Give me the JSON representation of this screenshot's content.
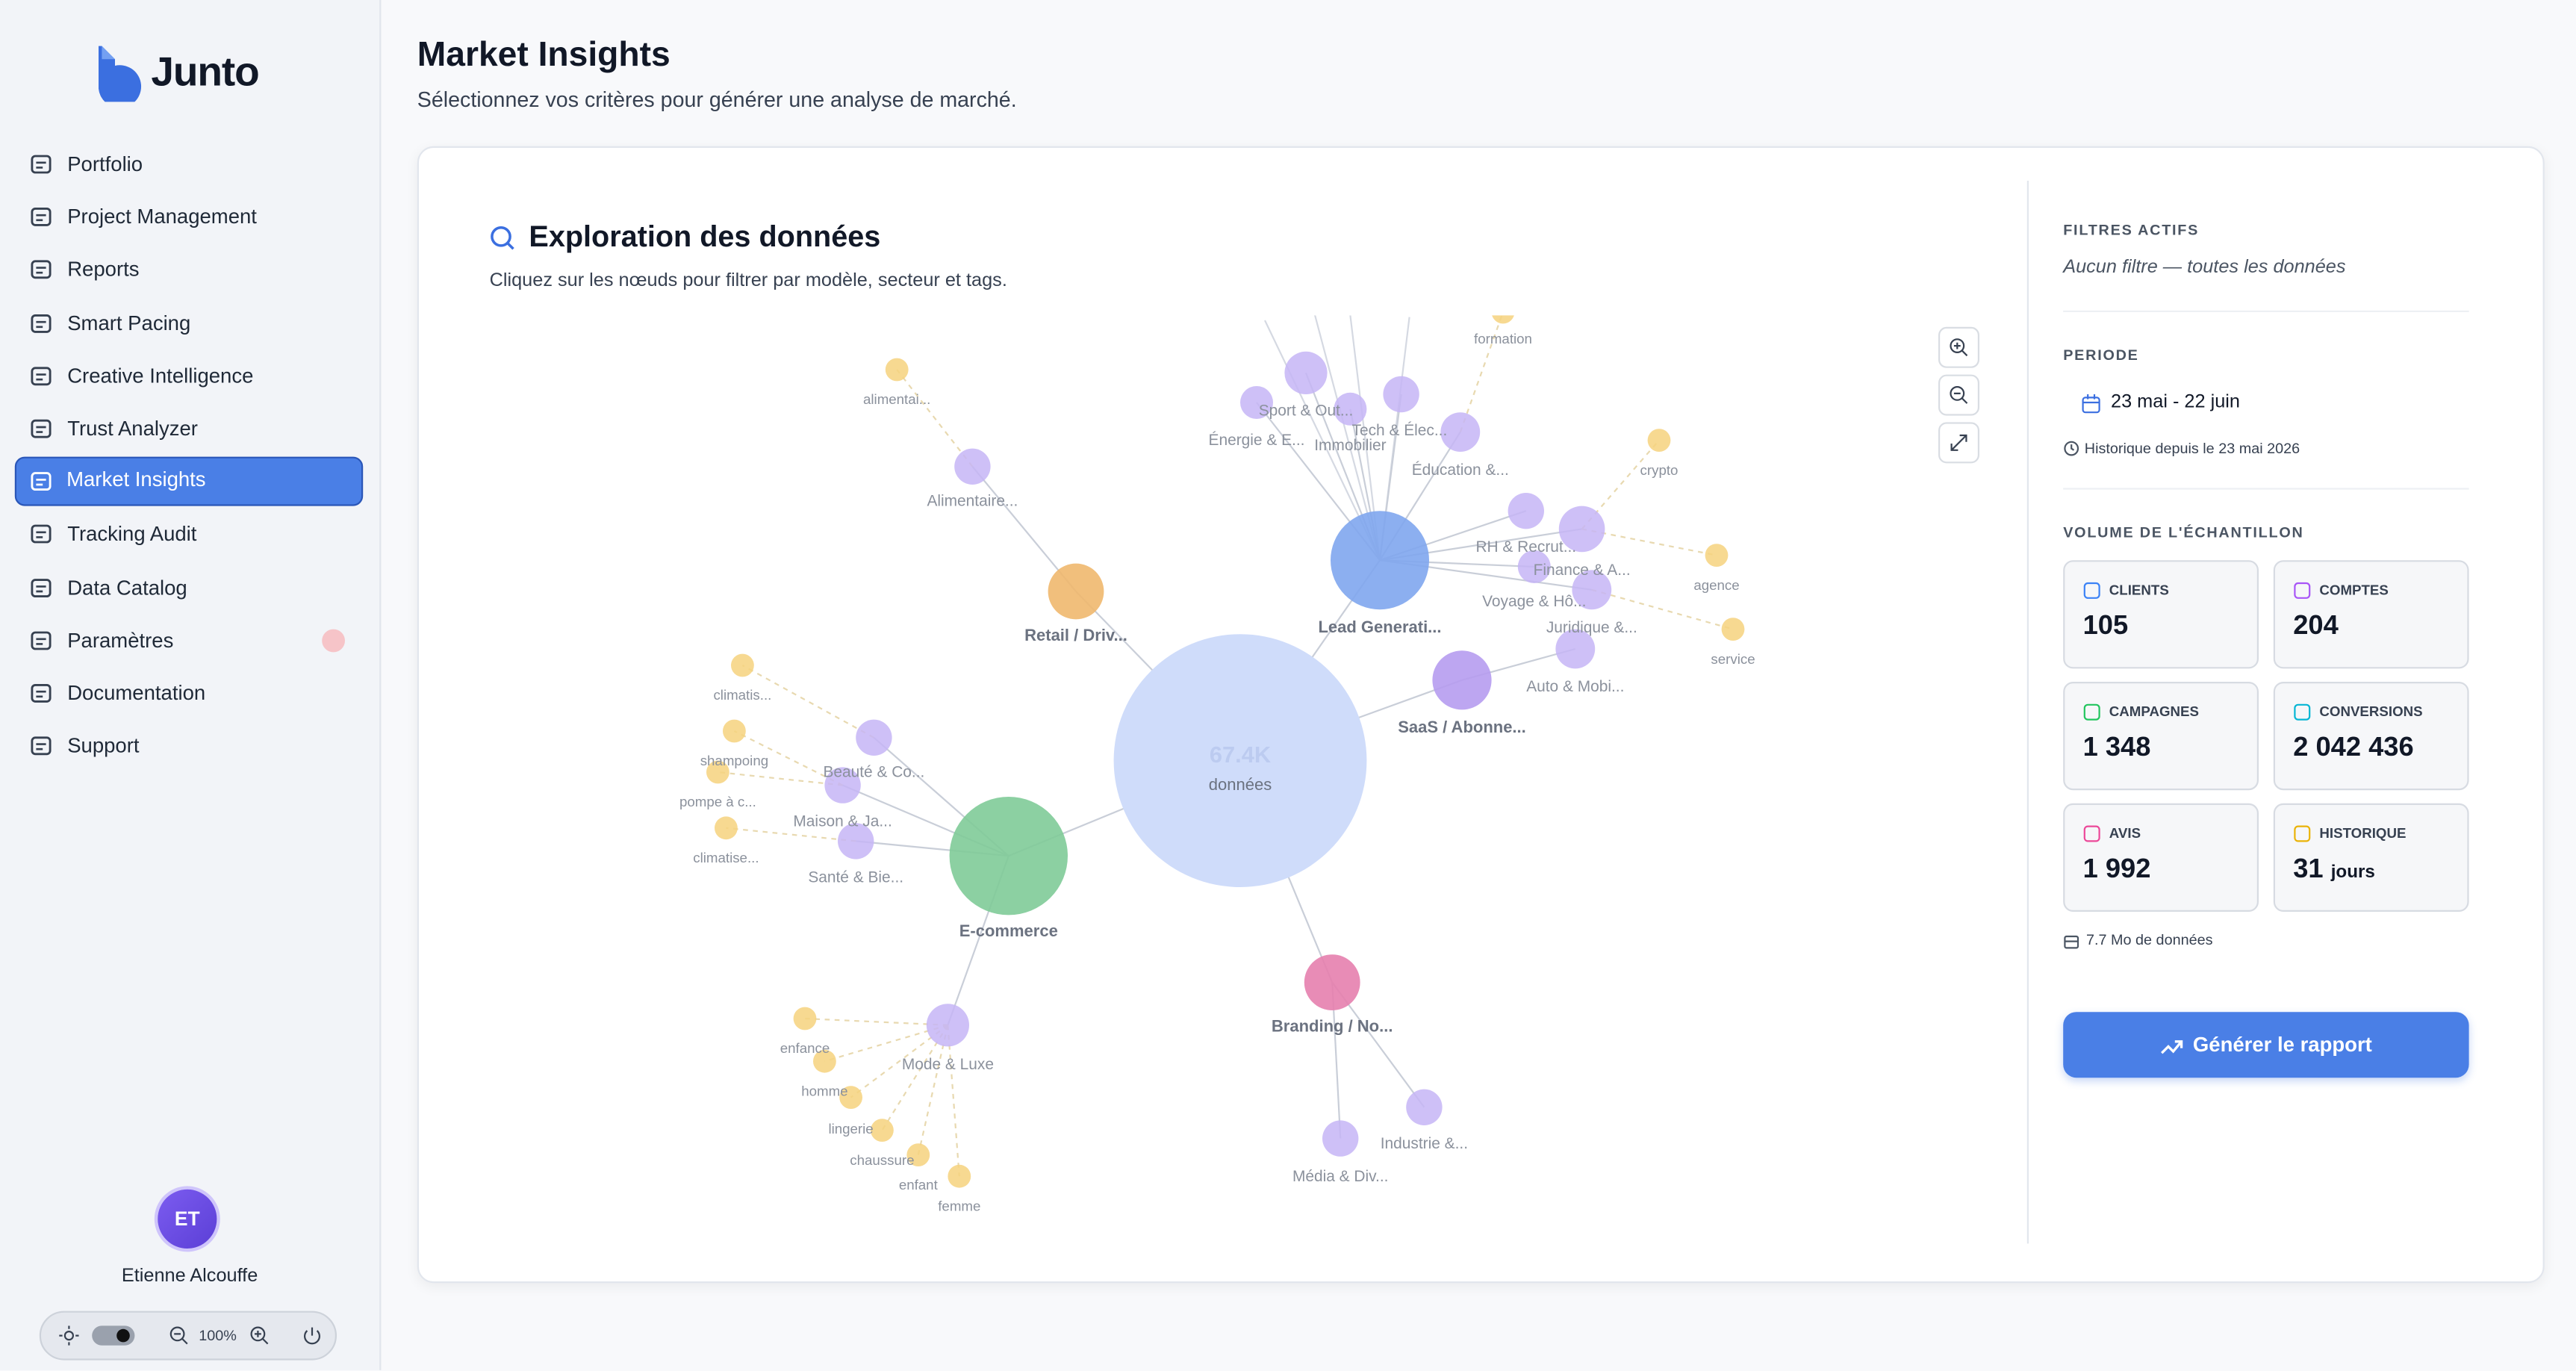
{
  "sidebar": {
    "brand": "Junto",
    "nav": [
      "Portfolio",
      "Project Management",
      "Reports",
      "Smart Pacing",
      "Creative Intelligence",
      "Trust Analyzer",
      "Market Insights",
      "Tracking Audit",
      "Data Catalog",
      "Paramètres",
      "Documentation",
      "Support"
    ],
    "user": {
      "initials": "ET",
      "name": "Etienne Alcouffe"
    },
    "zoom": "100%"
  },
  "header": {
    "title": "Market Insights",
    "subtitle": "Sélectionnez vos critères pour générer une analyse de marché."
  },
  "explorer": {
    "title": "Exploration des données",
    "description": "Cliquez sur les nœuds pour filtrer par modèle, secteur et tags.",
    "graph": {
      "center": {
        "value": "67.4K",
        "label": "données"
      },
      "nodes": [
        {
          "label": "Retail / Driv..."
        },
        {
          "label": "Lead Generati..."
        },
        {
          "label": "SaaS / Abonne..."
        },
        {
          "label": "E-commerce"
        },
        {
          "label": "Branding / No..."
        },
        {
          "label": "Alimentaire..."
        },
        {
          "label": "Sport & Out..."
        },
        {
          "label": "Énergie & E..."
        },
        {
          "label": "Tech & Élec..."
        },
        {
          "label": "Immobilier"
        },
        {
          "label": "Éducation &..."
        },
        {
          "label": "RH & Recrut..."
        },
        {
          "label": "Finance & A..."
        },
        {
          "label": "Voyage & Hô..."
        },
        {
          "label": "Juridique &..."
        },
        {
          "label": "Auto & Mobi..."
        },
        {
          "label": "Beauté & Co..."
        },
        {
          "label": "Maison & Ja..."
        },
        {
          "label": "Santé & Bie..."
        },
        {
          "label": "Mode & Luxe"
        },
        {
          "label": "Industrie &..."
        },
        {
          "label": "Média & Div..."
        },
        {
          "label": "alimentai..."
        },
        {
          "label": "formation"
        },
        {
          "label": "crypto"
        },
        {
          "label": "agence"
        },
        {
          "label": "service"
        },
        {
          "label": "climatis..."
        },
        {
          "label": "shampoing"
        },
        {
          "label": "pompe à c..."
        },
        {
          "label": "climatise..."
        },
        {
          "label": "enfance"
        },
        {
          "label": "homme"
        },
        {
          "label": "lingerie"
        },
        {
          "label": "chaussure"
        },
        {
          "label": "enfant"
        },
        {
          "label": "femme"
        }
      ]
    }
  },
  "panel": {
    "filters": {
      "heading": "FILTRES ACTIFS",
      "text": "Aucun filtre — toutes les données"
    },
    "period": {
      "heading": "PERIODE",
      "range": "23 mai - 22 juin",
      "history": "Historique depuis le 23 mai 2026"
    },
    "volume": {
      "heading": "VOLUME DE L'ÉCHANTILLON",
      "stats": [
        {
          "label": "CLIENTS",
          "value": "105"
        },
        {
          "label": "COMPTES",
          "value": "204"
        },
        {
          "label": "CAMPAGNES",
          "value": "1 348"
        },
        {
          "label": "CONVERSIONS",
          "value": "2 042 436"
        },
        {
          "label": "AVIS",
          "value": "1 992"
        },
        {
          "label": "HISTORIQUE",
          "value": "31",
          "unit": "jours"
        }
      ],
      "size": "7.7 Mo de données"
    },
    "button": "Générer le rapport"
  }
}
